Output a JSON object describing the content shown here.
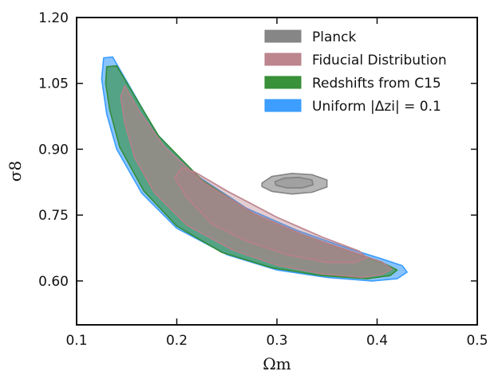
{
  "chart_data": {
    "type": "contour",
    "xlabel": "Ωm",
    "ylabel": "σ8",
    "xlim": [
      0.1,
      0.5
    ],
    "ylim": [
      0.5,
      1.2
    ],
    "xticks": [
      0.1,
      0.2,
      0.3,
      0.4,
      0.5
    ],
    "xtick_labels": [
      "0.1",
      "0.2",
      "0.3",
      "0.4",
      "0.5"
    ],
    "yticks": [
      0.6,
      0.75,
      0.9,
      1.05,
      1.2
    ],
    "ytick_labels": [
      "0.60",
      "0.75",
      "0.90",
      "1.05",
      "1.20"
    ],
    "grid": false,
    "legend_position": "top-right",
    "series": [
      {
        "name": "Uniform |Δzi| = 0.1",
        "color": "#3399ff",
        "contours": [
          {
            "level": "outer",
            "points": [
              [
                0.127,
                1.108
              ],
              [
                0.136,
                1.11
              ],
              [
                0.155,
                1.035
              ],
              [
                0.18,
                0.935
              ],
              [
                0.22,
                0.84
              ],
              [
                0.27,
                0.765
              ],
              [
                0.32,
                0.715
              ],
              [
                0.37,
                0.675
              ],
              [
                0.405,
                0.65
              ],
              [
                0.425,
                0.635
              ],
              [
                0.43,
                0.62
              ],
              [
                0.42,
                0.605
              ],
              [
                0.395,
                0.6
              ],
              [
                0.35,
                0.608
              ],
              [
                0.3,
                0.625
              ],
              [
                0.25,
                0.66
              ],
              [
                0.2,
                0.72
              ],
              [
                0.165,
                0.8
              ],
              [
                0.14,
                0.9
              ],
              [
                0.13,
                0.98
              ],
              [
                0.125,
                1.06
              ]
            ]
          }
        ]
      },
      {
        "name": "Redshifts from C15",
        "color": "#2e8b2e",
        "contours": [
          {
            "level": "outer",
            "points": [
              [
                0.13,
                1.088
              ],
              [
                0.14,
                1.09
              ],
              [
                0.157,
                1.025
              ],
              [
                0.182,
                0.93
              ],
              [
                0.225,
                0.83
              ],
              [
                0.275,
                0.755
              ],
              [
                0.325,
                0.706
              ],
              [
                0.372,
                0.668
              ],
              [
                0.405,
                0.642
              ],
              [
                0.42,
                0.625
              ],
              [
                0.413,
                0.612
              ],
              [
                0.39,
                0.605
              ],
              [
                0.345,
                0.612
              ],
              [
                0.295,
                0.63
              ],
              [
                0.245,
                0.665
              ],
              [
                0.2,
                0.725
              ],
              [
                0.167,
                0.805
              ],
              [
                0.143,
                0.905
              ],
              [
                0.133,
                0.99
              ],
              [
                0.129,
                1.05
              ]
            ]
          }
        ]
      },
      {
        "name": "Fiducial Distribution",
        "color": "#b97f88",
        "contours": [
          {
            "level": "outer",
            "points": [
              [
                0.148,
                1.045
              ],
              [
                0.163,
                0.985
              ],
              [
                0.188,
                0.905
              ],
              [
                0.228,
                0.822
              ],
              [
                0.278,
                0.752
              ],
              [
                0.328,
                0.703
              ],
              [
                0.373,
                0.668
              ],
              [
                0.405,
                0.643
              ],
              [
                0.415,
                0.627
              ],
              [
                0.405,
                0.615
              ],
              [
                0.385,
                0.608
              ],
              [
                0.345,
                0.616
              ],
              [
                0.3,
                0.636
              ],
              [
                0.255,
                0.671
              ],
              [
                0.21,
                0.727
              ],
              [
                0.178,
                0.8
              ],
              [
                0.158,
                0.88
              ],
              [
                0.148,
                0.96
              ],
              [
                0.144,
                1.02
              ]
            ]
          },
          {
            "level": "inner",
            "points": [
              [
                0.205,
                0.858
              ],
              [
                0.218,
                0.848
              ],
              [
                0.25,
                0.805
              ],
              [
                0.3,
                0.745
              ],
              [
                0.345,
                0.7
              ],
              [
                0.382,
                0.668
              ],
              [
                0.39,
                0.653
              ],
              [
                0.378,
                0.642
              ],
              [
                0.35,
                0.642
              ],
              [
                0.31,
                0.66
              ],
              [
                0.27,
                0.69
              ],
              [
                0.235,
                0.73
              ],
              [
                0.21,
                0.79
              ],
              [
                0.198,
                0.835
              ]
            ]
          }
        ]
      },
      {
        "name": "Planck",
        "color": "#808080",
        "contours": [
          {
            "level": "outer",
            "points": [
              [
                0.285,
                0.823
              ],
              [
                0.295,
                0.838
              ],
              [
                0.315,
                0.845
              ],
              [
                0.335,
                0.842
              ],
              [
                0.35,
                0.83
              ],
              [
                0.35,
                0.814
              ],
              [
                0.335,
                0.802
              ],
              [
                0.315,
                0.798
              ],
              [
                0.295,
                0.804
              ],
              [
                0.285,
                0.815
              ]
            ]
          },
          {
            "level": "inner",
            "points": [
              [
                0.298,
                0.826
              ],
              [
                0.307,
                0.834
              ],
              [
                0.322,
                0.836
              ],
              [
                0.335,
                0.83
              ],
              [
                0.336,
                0.819
              ],
              [
                0.325,
                0.812
              ],
              [
                0.31,
                0.812
              ],
              [
                0.299,
                0.818
              ]
            ]
          }
        ]
      }
    ],
    "legend": [
      {
        "label": "Planck",
        "color": "#808080"
      },
      {
        "label": "Fiducial Distribution",
        "color": "#b97f88"
      },
      {
        "label": "Redshifts from C15",
        "color": "#2e8b2e"
      },
      {
        "label": "Uniform |Δzi| = 0.1",
        "color": "#3399ff"
      }
    ]
  }
}
